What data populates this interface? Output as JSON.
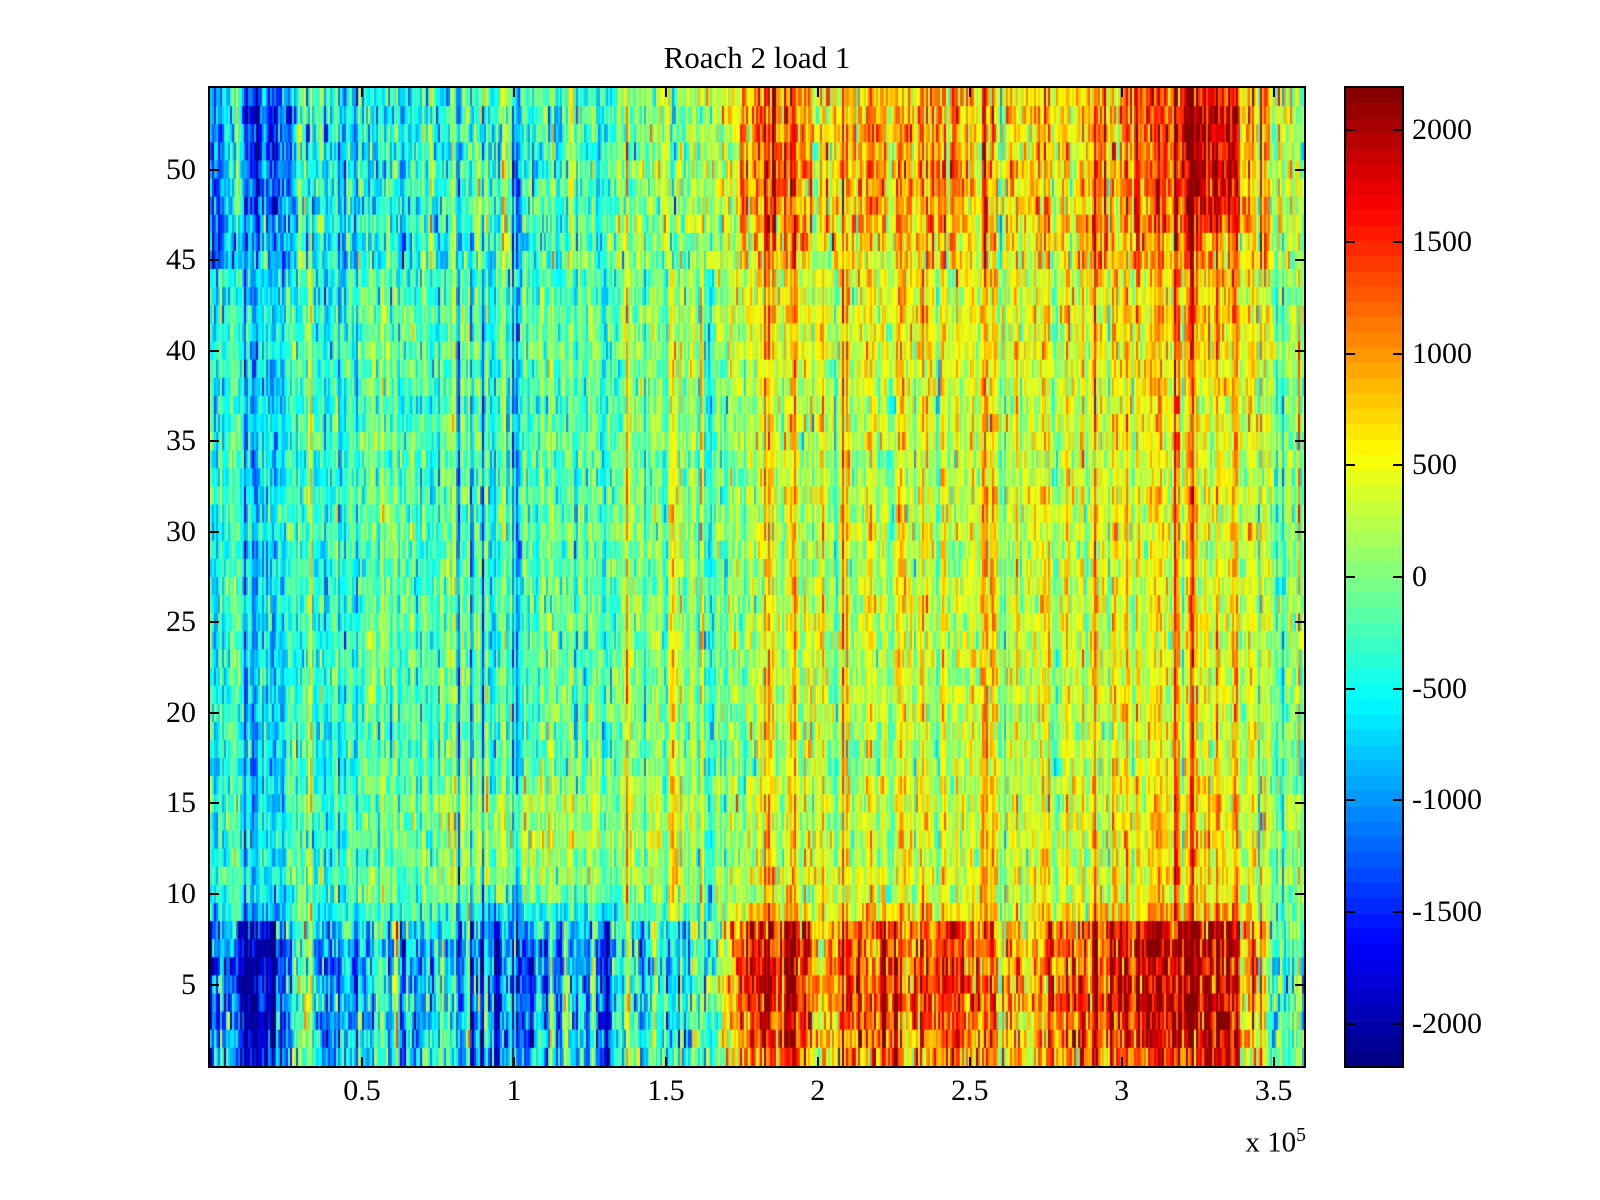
{
  "figure": {
    "background_color": "#ffffff",
    "axis_color": "#000000"
  },
  "chart_data": {
    "type": "heatmap",
    "title": "Roach 2 load 1",
    "colormap": "jet",
    "colormap_levels": 64,
    "caxis": [
      -2190,
      2190
    ],
    "x_axis": {
      "range_units": [
        0,
        3.6
      ],
      "scale_factor": 100000,
      "unit_base": "x 10",
      "unit_exp": "5",
      "ticks": [
        0.5,
        1.0,
        1.5,
        2.0,
        2.5,
        3.0,
        3.5
      ],
      "tick_labels": [
        "0.5",
        "1",
        "1.5",
        "2",
        "2.5",
        "3",
        "3.5"
      ]
    },
    "y_axis": {
      "rows": 54,
      "range": [
        0.5,
        54.5
      ],
      "ticks": [
        5,
        10,
        15,
        20,
        25,
        30,
        35,
        40,
        45,
        50
      ],
      "tick_labels": [
        "5",
        "10",
        "15",
        "20",
        "25",
        "30",
        "35",
        "40",
        "45",
        "50"
      ]
    },
    "colorbar": {
      "tick_values": [
        2000,
        1500,
        1000,
        500,
        0,
        -500,
        -1000,
        -1500,
        -2000
      ],
      "tick_labels": [
        "2000",
        "1500",
        "1000",
        "500",
        "0",
        "-500",
        "-1000",
        "-1500",
        "-2000"
      ]
    },
    "base_grid": {
      "comment": "coarse mean-value grid; row_positions are channel rows (bottom=1), col_positions are x in units of 1e5 samples; values[r][c] in colorbar units",
      "row_positions": [
        1,
        3,
        7,
        8,
        9,
        10,
        13,
        19,
        27,
        34,
        40,
        44,
        45,
        48,
        53,
        54
      ],
      "col_positions": [
        0.0,
        0.03,
        0.05,
        0.09,
        0.13,
        0.22,
        0.27,
        0.31,
        0.36,
        0.55,
        0.8,
        1.0,
        1.2,
        1.45,
        1.65,
        1.75,
        1.9,
        2.0,
        2.15,
        2.3,
        2.45,
        2.6,
        2.8,
        2.95,
        3.1,
        3.3,
        3.42,
        3.52,
        3.6
      ],
      "values": [
        [
          -1200,
          -700,
          -900,
          -1000,
          -1600,
          -1500,
          -500,
          250,
          -600,
          -500,
          -500,
          -850,
          -700,
          -500,
          -250,
          1100,
          1450,
          750,
          1250,
          1150,
          1300,
          700,
          1000,
          1250,
          1500,
          1850,
          1100,
          -250,
          -350
        ],
        [
          -1500,
          -800,
          -1100,
          -1100,
          -1950,
          -1800,
          -650,
          350,
          -700,
          -650,
          -600,
          -1050,
          -850,
          -600,
          -350,
          1450,
          1750,
          900,
          1500,
          1350,
          1550,
          800,
          1200,
          1500,
          1800,
          2080,
          1300,
          -300,
          -450
        ],
        [
          -1550,
          -850,
          -1150,
          -1150,
          -2050,
          -1900,
          -700,
          300,
          -750,
          -700,
          -650,
          -1100,
          -900,
          -650,
          -400,
          1500,
          1850,
          950,
          1550,
          1400,
          1600,
          850,
          1250,
          1550,
          1900,
          2120,
          1350,
          -300,
          -450
        ],
        [
          -1400,
          -800,
          -1050,
          -1050,
          -1850,
          -1750,
          -650,
          300,
          -700,
          -650,
          -600,
          -1000,
          -850,
          -600,
          -350,
          1350,
          1700,
          850,
          1400,
          1300,
          1450,
          800,
          1100,
          1400,
          1700,
          1950,
          1250,
          -300,
          -400
        ],
        [
          -700,
          -450,
          -600,
          -600,
          -1000,
          -950,
          -400,
          150,
          -450,
          -400,
          -350,
          -550,
          -450,
          -250,
          -50,
          650,
          850,
          500,
          700,
          650,
          750,
          450,
          550,
          700,
          850,
          1000,
          600,
          -150,
          -250
        ],
        [
          -350,
          -300,
          -400,
          -400,
          -600,
          -550,
          -250,
          50,
          -250,
          -200,
          -100,
          -200,
          -100,
          0,
          100,
          400,
          450,
          350,
          400,
          400,
          500,
          350,
          350,
          400,
          500,
          550,
          350,
          -50,
          -150
        ],
        [
          -350,
          -300,
          -450,
          -450,
          -650,
          -600,
          -300,
          -150,
          -300,
          -250,
          150,
          300,
          250,
          250,
          150,
          300,
          350,
          300,
          350,
          400,
          500,
          400,
          400,
          450,
          650,
          750,
          400,
          50,
          -100
        ],
        [
          -350,
          -300,
          -500,
          -500,
          -700,
          -650,
          -350,
          -200,
          -300,
          -300,
          -200,
          -200,
          -150,
          -50,
          50,
          250,
          300,
          250,
          300,
          350,
          450,
          350,
          350,
          400,
          450,
          500,
          350,
          0,
          -100
        ],
        [
          -300,
          -250,
          -500,
          -500,
          -700,
          -650,
          -400,
          -250,
          -350,
          -300,
          -250,
          -250,
          -150,
          -50,
          50,
          200,
          300,
          250,
          300,
          350,
          450,
          350,
          300,
          350,
          400,
          450,
          300,
          0,
          -50
        ],
        [
          -300,
          -250,
          -450,
          -450,
          -650,
          -600,
          -350,
          -200,
          -300,
          -250,
          -250,
          -200,
          -150,
          -50,
          100,
          250,
          350,
          300,
          300,
          350,
          450,
          350,
          350,
          400,
          450,
          500,
          350,
          50,
          0
        ],
        [
          -350,
          -300,
          -500,
          -500,
          -700,
          -650,
          -350,
          -200,
          -300,
          -300,
          -250,
          -250,
          -150,
          -50,
          100,
          350,
          500,
          350,
          400,
          450,
          550,
          400,
          400,
          500,
          600,
          700,
          450,
          100,
          0
        ],
        [
          -400,
          -350,
          -600,
          -600,
          -800,
          -750,
          -400,
          -250,
          -350,
          -350,
          -300,
          -300,
          -200,
          -100,
          100,
          500,
          700,
          400,
          500,
          600,
          650,
          450,
          450,
          600,
          800,
          900,
          550,
          150,
          50
        ],
        [
          -450,
          -400,
          -700,
          -500,
          -950,
          -900,
          -500,
          -300,
          -400,
          -400,
          -350,
          -300,
          -200,
          -100,
          100,
          700,
          900,
          500,
          700,
          750,
          850,
          500,
          500,
          700,
          950,
          1200,
          700,
          200,
          100
        ],
        [
          -500,
          -450,
          -800,
          100,
          -1350,
          -1250,
          -600,
          -350,
          -450,
          -400,
          -350,
          -300,
          -250,
          -100,
          150,
          1000,
          1200,
          600,
          850,
          900,
          1000,
          550,
          550,
          800,
          1250,
          2000,
          1100,
          250,
          150
        ],
        [
          -550,
          -500,
          -850,
          300,
          -1650,
          -1550,
          -700,
          -350,
          -450,
          -450,
          -400,
          -350,
          -250,
          -100,
          150,
          1150,
          1300,
          650,
          900,
          950,
          1050,
          600,
          600,
          850,
          1350,
          2050,
          1150,
          300,
          200
        ],
        [
          -500,
          -450,
          -800,
          250,
          -1400,
          -1300,
          -600,
          -350,
          -450,
          -400,
          -350,
          -300,
          -250,
          -100,
          150,
          950,
          1100,
          550,
          800,
          850,
          950,
          550,
          550,
          750,
          1200,
          1750,
          1000,
          250,
          150
        ]
      ]
    },
    "noise": {
      "seed": 1337,
      "columns": 547,
      "bands": {
        "bottom_rows": [
          1,
          8
        ],
        "middle_rows": [
          9,
          44
        ],
        "top_rows": [
          45,
          54
        ]
      },
      "col_global_sigma": 220,
      "col_band_sigma": [
        430,
        250,
        330
      ],
      "cell_sigma": [
        430,
        280,
        360
      ],
      "row_sigma": 55
    }
  }
}
